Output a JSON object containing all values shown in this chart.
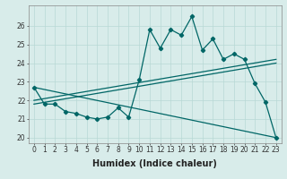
{
  "title": "",
  "xlabel": "Humidex (Indice chaleur)",
  "ylabel": "",
  "bg_color": "#d8ecea",
  "grid_color": "#b8d8d5",
  "line_color": "#006666",
  "x_ticks": [
    0,
    1,
    2,
    3,
    4,
    5,
    6,
    7,
    8,
    9,
    10,
    11,
    12,
    13,
    14,
    15,
    16,
    17,
    18,
    19,
    20,
    21,
    22,
    23
  ],
  "y_ticks": [
    20,
    21,
    22,
    23,
    24,
    25,
    26
  ],
  "ylim": [
    19.7,
    27.1
  ],
  "xlim": [
    -0.5,
    23.5
  ],
  "line1": [
    22.7,
    21.8,
    21.8,
    21.4,
    21.3,
    21.1,
    21.0,
    21.1,
    21.6,
    21.1,
    23.1,
    25.8,
    24.8,
    25.8,
    25.5,
    26.5,
    24.7,
    25.3,
    24.2,
    24.5,
    24.2,
    22.9,
    21.9,
    20.0
  ],
  "reg_down": [
    22.7,
    20.0
  ],
  "reg_up1": [
    21.8,
    24.0
  ],
  "reg_up2": [
    22.0,
    24.2
  ],
  "tick_fontsize": 5.5,
  "xlabel_fontsize": 7.0,
  "lw": 0.9,
  "ms": 2.2
}
